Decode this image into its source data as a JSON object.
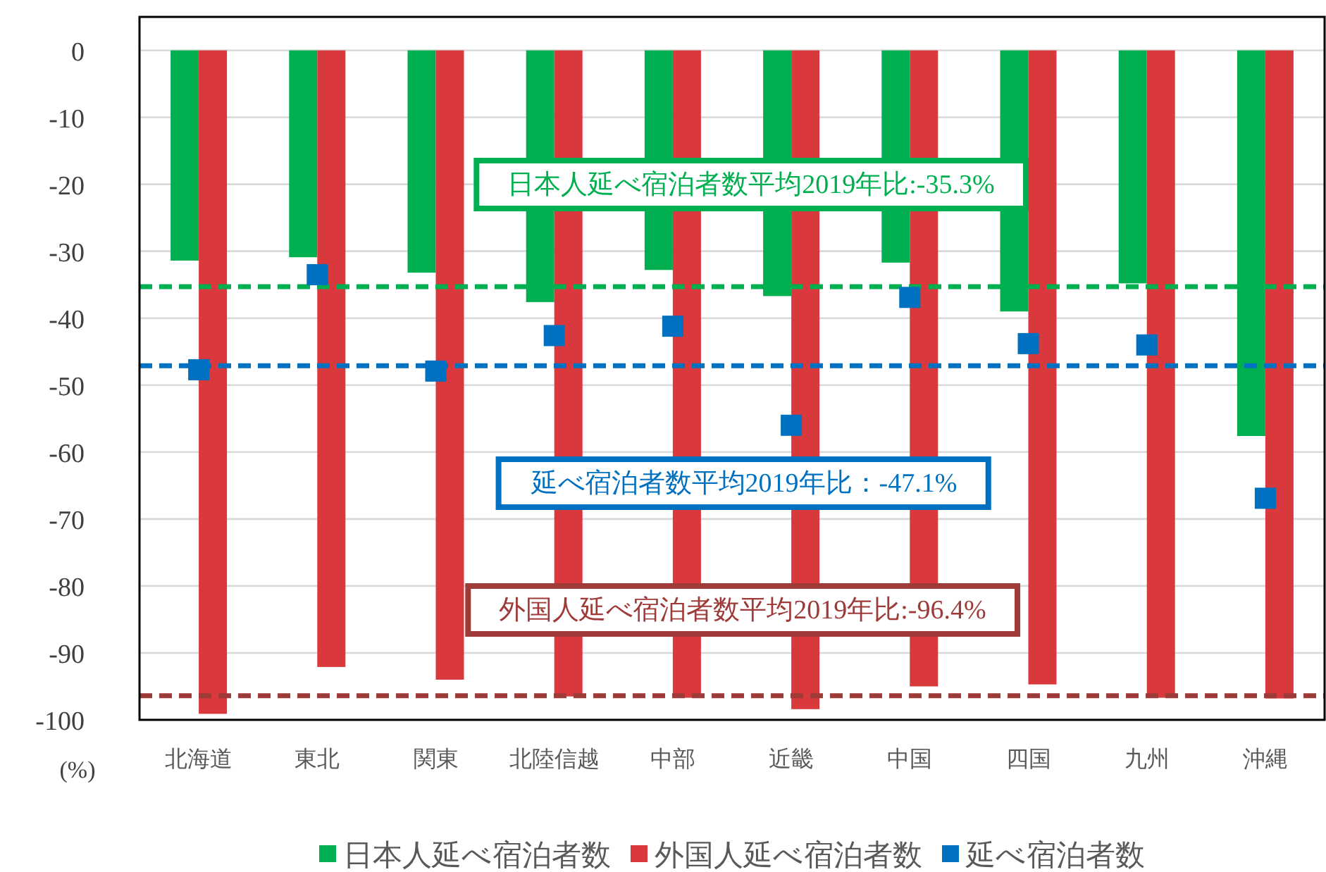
{
  "chart_data": {
    "type": "bar",
    "categories": [
      "北海道",
      "東北",
      "関東",
      "北陸信越",
      "中部",
      "近畿",
      "中国",
      "四国",
      "九州",
      "沖縄"
    ],
    "series": [
      {
        "name": "日本人延べ宿泊者数",
        "color": "#00b050",
        "values": [
          -31.4,
          -30.9,
          -33.2,
          -37.6,
          -32.8,
          -36.7,
          -31.7,
          -39.0,
          -34.8,
          -57.6
        ]
      },
      {
        "name": "外国人延べ宿泊者数",
        "color": "#d9393c",
        "values": [
          -99.1,
          -92.1,
          -94.0,
          -96.5,
          -96.7,
          -98.4,
          -95.0,
          -94.7,
          -96.7,
          -96.8
        ]
      },
      {
        "name": "延べ宿泊者数",
        "color": "#0070c0",
        "type": "scatter",
        "marker": "square",
        "values": [
          -47.7,
          -33.5,
          -47.9,
          -42.6,
          -41.2,
          -56.0,
          -36.9,
          -43.8,
          -44.0,
          -66.9
        ]
      }
    ],
    "ylabel": "(%)",
    "ylim": [
      -100,
      5
    ],
    "yticks": [
      0,
      -10,
      -20,
      -30,
      -40,
      -50,
      -60,
      -70,
      -80,
      -90,
      -100
    ],
    "grid": "y",
    "legend": "bottom",
    "ref_lines": [
      {
        "axis": "y",
        "value": -35.3,
        "label": "日本人延べ宿泊者数平均2019年比:-35.3%",
        "color": "#00b050",
        "line_style": "dashed"
      },
      {
        "axis": "y",
        "value": -47.1,
        "label": "延べ宿泊者数平均2019年比：-47.1%",
        "color": "#0070c0",
        "line_style": "dashed"
      },
      {
        "axis": "y",
        "value": -96.4,
        "label": "外国人延べ宿泊者数平均2019年比:-96.4%",
        "color": "#9e3a38",
        "line_style": "dashed"
      }
    ]
  }
}
